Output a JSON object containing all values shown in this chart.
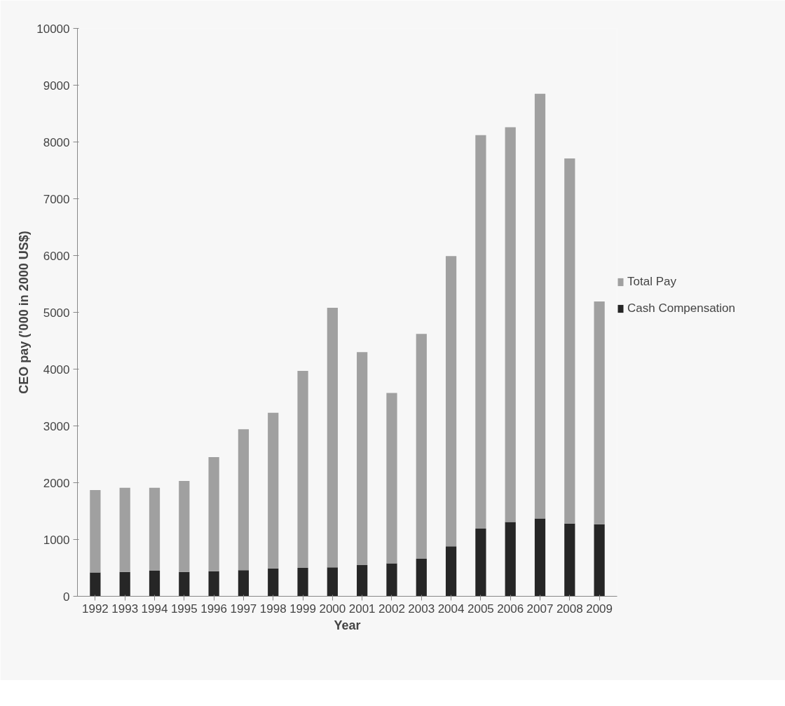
{
  "chart_data": {
    "type": "bar",
    "stacked": true,
    "xlabel": "Year",
    "ylabel": "CEO pay ('000 in 2000 US$)",
    "categories": [
      "1992",
      "1993",
      "1994",
      "1995",
      "1996",
      "1997",
      "1998",
      "1999",
      "2000",
      "2001",
      "2002",
      "2003",
      "2004",
      "2005",
      "2006",
      "2007",
      "2008",
      "2009"
    ],
    "series": [
      {
        "name": "Cash Compensation",
        "color": "#262626",
        "values": [
          420,
          430,
          450,
          430,
          440,
          460,
          490,
          500,
          510,
          550,
          580,
          660,
          880,
          1190,
          1310,
          1370,
          1280,
          1270
        ]
      },
      {
        "name": "Total Pay",
        "color": "#a0a0a0",
        "values": [
          1450,
          1480,
          1460,
          1600,
          2010,
          2480,
          2740,
          3470,
          4570,
          3750,
          3000,
          3960,
          5110,
          6930,
          6950,
          7480,
          6430,
          3920
        ]
      }
    ],
    "ylim": [
      0,
      10000
    ],
    "yticks": [
      0,
      1000,
      2000,
      3000,
      4000,
      5000,
      6000,
      7000,
      8000,
      9000,
      10000
    ],
    "grid": false,
    "legend": "right"
  }
}
